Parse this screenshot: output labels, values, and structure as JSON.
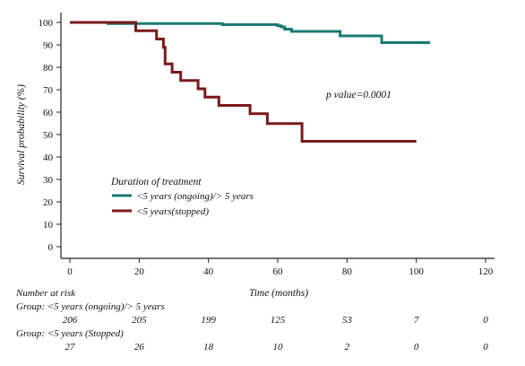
{
  "chart_data": {
    "type": "line",
    "subtype": "kaplan-meier step",
    "title": "",
    "xlabel": "Time (months)",
    "ylabel": "Survival probability (%)",
    "xlim": [
      0,
      120
    ],
    "ylim": [
      0,
      100
    ],
    "x_ticks": [
      0,
      20,
      40,
      60,
      80,
      100,
      120
    ],
    "y_ticks": [
      0,
      10,
      20,
      30,
      40,
      50,
      60,
      70,
      80,
      90,
      100
    ],
    "grid": false,
    "legend": {
      "title": "Duration of treatment",
      "placement": "middle-left"
    },
    "annotation": "p value=0.0001",
    "series": [
      {
        "name": "<5 years (ongoing)/> 5 years",
        "color": "#1a7a73",
        "points": [
          [
            0,
            100
          ],
          [
            11,
            100
          ],
          [
            11,
            99.5
          ],
          [
            44,
            99.5
          ],
          [
            44,
            99
          ],
          [
            60,
            99
          ],
          [
            60,
            98.5
          ],
          [
            61,
            98.5
          ],
          [
            61,
            98
          ],
          [
            62,
            98
          ],
          [
            62,
            97
          ],
          [
            64,
            97
          ],
          [
            64,
            96
          ],
          [
            78,
            96
          ],
          [
            78,
            94
          ],
          [
            90,
            94
          ],
          [
            90,
            91
          ],
          [
            104,
            91
          ]
        ]
      },
      {
        "name": "<5 years(stopped)",
        "color": "#7a1a1a",
        "points": [
          [
            0,
            100
          ],
          [
            19,
            100
          ],
          [
            19,
            96.3
          ],
          [
            25,
            96.3
          ],
          [
            25,
            92.6
          ],
          [
            27,
            92.6
          ],
          [
            27,
            88.9
          ],
          [
            27.5,
            88.9
          ],
          [
            27.5,
            81.5
          ],
          [
            29.5,
            81.5
          ],
          [
            29.5,
            77.8
          ],
          [
            32,
            77.8
          ],
          [
            32,
            74.1
          ],
          [
            37,
            74.1
          ],
          [
            37,
            70.4
          ],
          [
            39,
            70.4
          ],
          [
            39,
            66.7
          ],
          [
            43,
            66.7
          ],
          [
            43,
            63
          ],
          [
            52,
            63
          ],
          [
            52,
            59.3
          ],
          [
            57,
            59.3
          ],
          [
            57,
            54.9
          ],
          [
            67,
            54.9
          ],
          [
            67,
            47
          ],
          [
            100,
            47
          ]
        ]
      }
    ]
  },
  "risk_table": {
    "title": "Number at risk",
    "groups": [
      {
        "label": "Group: <5 years (ongoing)/> 5 years",
        "times": [
          0,
          20,
          40,
          60,
          80,
          100,
          120
        ],
        "counts": [
          "206",
          "205",
          "199",
          "125",
          "53",
          "7",
          "0"
        ]
      },
      {
        "label": "Group: <5 years (Stopped)",
        "times": [
          0,
          20,
          40,
          60,
          80,
          100,
          120
        ],
        "counts": [
          "27",
          "26",
          "18",
          "10",
          "2",
          "0",
          "0"
        ]
      }
    ]
  }
}
